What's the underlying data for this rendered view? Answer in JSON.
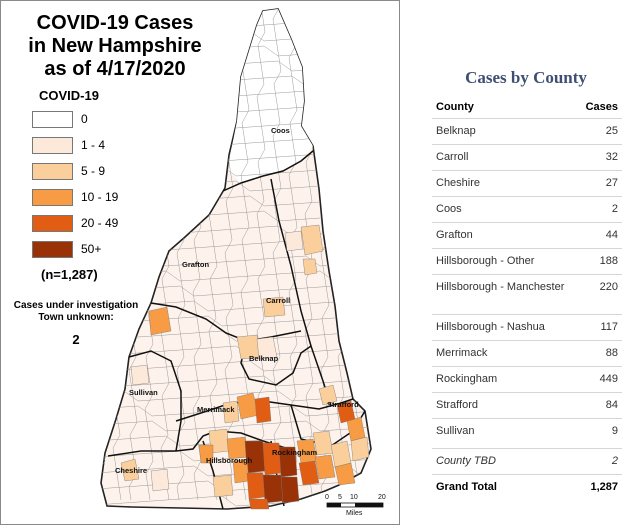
{
  "map": {
    "title_lines": [
      "COVID-19 Cases",
      "in New Hampshire",
      "as of 4/17/2020"
    ],
    "legend_title": "COVID-19",
    "legend": [
      {
        "label": "0",
        "color": "#ffffff"
      },
      {
        "label": "1 - 4",
        "color": "#fde9d9"
      },
      {
        "label": "5 - 9",
        "color": "#fbcf9b"
      },
      {
        "label": "10 - 19",
        "color": "#f89b45"
      },
      {
        "label": "20 - 49",
        "color": "#e25d14"
      },
      {
        "label": "50+",
        "color": "#9a3208"
      }
    ],
    "total_note": "(n=1,287)",
    "investigation_lines": [
      "Cases under investigation",
      "Town unknown:"
    ],
    "investigation_count": "2",
    "county_labels": [
      "Coos",
      "Grafton",
      "Carroll",
      "Belknap",
      "Sullivan",
      "Merrimack",
      "Strafford",
      "Cheshire",
      "Hillsborough",
      "Rockingham"
    ],
    "scale_ticks": [
      "0",
      "5",
      "10",
      "20"
    ],
    "scale_unit": "Miles"
  },
  "table": {
    "title": "Cases by County",
    "headers": {
      "county": "County",
      "cases": "Cases"
    },
    "rows": [
      {
        "county": "Belknap",
        "cases": "25"
      },
      {
        "county": "Carroll",
        "cases": "32"
      },
      {
        "county": "Cheshire",
        "cases": "27"
      },
      {
        "county": "Coos",
        "cases": "2"
      },
      {
        "county": "Grafton",
        "cases": "44"
      },
      {
        "county": "Hillsborough - Other",
        "cases": "188"
      },
      {
        "county": "Hillsborough - Manchester",
        "cases": "220"
      },
      {
        "county": "Hillsborough - Nashua",
        "cases": "117"
      },
      {
        "county": "Merrimack",
        "cases": "88"
      },
      {
        "county": "Rockingham",
        "cases": "449"
      },
      {
        "county": "Strafford",
        "cases": "84"
      },
      {
        "county": "Sullivan",
        "cases": "9"
      },
      {
        "county": "County TBD",
        "cases": "2"
      }
    ],
    "total": {
      "label": "Grand Total",
      "cases": "1,287"
    }
  }
}
